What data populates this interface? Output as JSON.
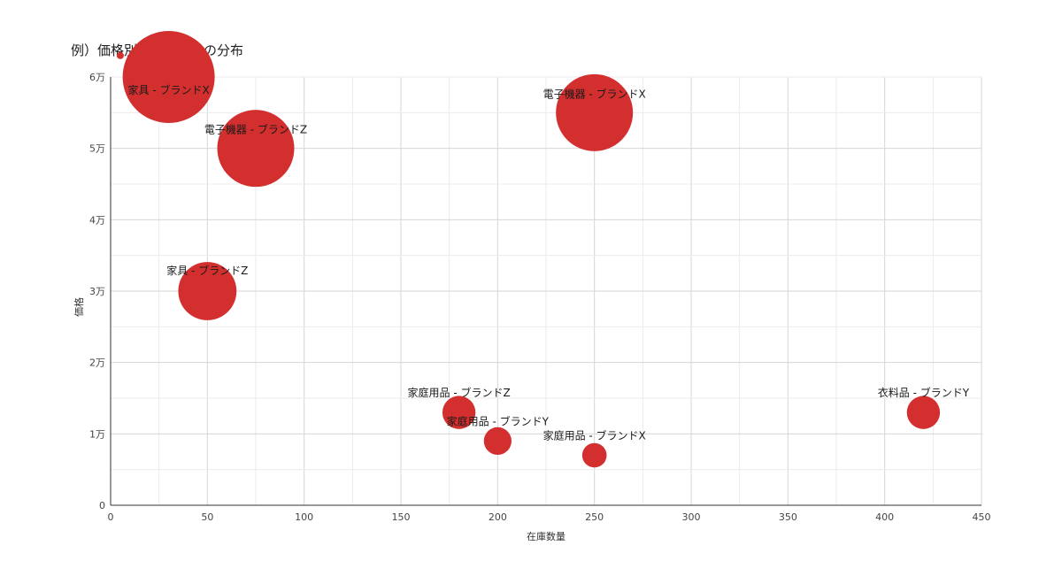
{
  "chart_data": {
    "type": "scatter",
    "title": "例）価格別の在庫数量の分布",
    "xlabel": "在庫数量",
    "ylabel": "価格",
    "xlim": [
      0,
      450
    ],
    "ylim": [
      0,
      60000
    ],
    "x_ticks": [
      0,
      50,
      100,
      150,
      200,
      250,
      300,
      350,
      400,
      450
    ],
    "x_tick_labels": [
      "0",
      "50",
      "100",
      "150",
      "200",
      "250",
      "300",
      "350",
      "400",
      "450"
    ],
    "y_ticks": [
      0,
      10000,
      20000,
      30000,
      40000,
      50000,
      60000
    ],
    "y_tick_labels": [
      "0",
      "1万",
      "2万",
      "3万",
      "4万",
      "5万",
      "6万"
    ],
    "grid": true,
    "legend": "none",
    "bubble_color": "#d32f2f",
    "points": [
      {
        "label": "家具 - ブランドX",
        "x": 30,
        "y": 60000,
        "size": 100
      },
      {
        "label": "電子機器 - ブランドZ",
        "x": 75,
        "y": 50000,
        "size": 70
      },
      {
        "label": "電子機器 - ブランドX",
        "x": 250,
        "y": 55000,
        "size": 70
      },
      {
        "label": "家具 - ブランドZ",
        "x": 50,
        "y": 30000,
        "size": 40
      },
      {
        "label": "家庭用品 - ブランドZ",
        "x": 180,
        "y": 13000,
        "size": 13
      },
      {
        "label": "家庭用品 - ブランドY",
        "x": 200,
        "y": 9000,
        "size": 9
      },
      {
        "label": "家庭用品 - ブランドX",
        "x": 250,
        "y": 7000,
        "size": 7
      },
      {
        "label": "衣料品 - ブランドY",
        "x": 420,
        "y": 13000,
        "size": 13
      }
    ],
    "legend_marker": {
      "x": 5,
      "y": 63000
    }
  }
}
